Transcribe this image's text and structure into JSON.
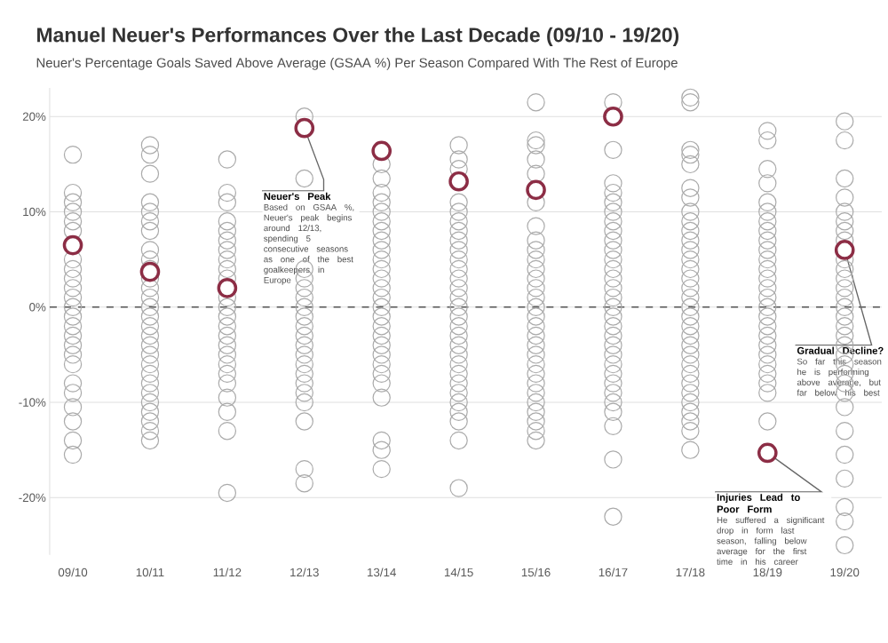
{
  "chart_data": {
    "type": "scatter",
    "title": "Manuel Neuer's Performances Over the Last Decade (09/10 - 19/20)",
    "subtitle": "Neuer's Percentage Goals Saved Above Average (GSAA %) Per Season Compared With The Rest of Europe",
    "categories": [
      "09/10",
      "10/11",
      "11/12",
      "12/13",
      "13/14",
      "14/15",
      "15/16",
      "16/17",
      "17/18",
      "18/19",
      "19/20"
    ],
    "ylim": [
      -26,
      23
    ],
    "yticks": [
      {
        "value": -20,
        "label": "-20%"
      },
      {
        "value": -10,
        "label": "-10%"
      },
      {
        "value": 0,
        "label": "0%"
      },
      {
        "value": 10,
        "label": "10%"
      },
      {
        "value": 20,
        "label": "20%"
      }
    ],
    "grid": "y",
    "marker": "circle",
    "ref_lines": [
      {
        "axis": "y",
        "value": 0,
        "line_style": "dashed",
        "color": "#555555"
      }
    ],
    "series": [
      {
        "color": "#aaaaaa",
        "x": [
          "09/10",
          "09/10",
          "09/10",
          "09/10",
          "09/10",
          "09/10",
          "09/10",
          "09/10",
          "09/10",
          "09/10",
          "09/10",
          "09/10",
          "09/10",
          "09/10",
          "09/10",
          "09/10",
          "09/10",
          "09/10",
          "09/10",
          "09/10",
          "09/10",
          "09/10",
          "09/10",
          "09/10",
          "10/11",
          "10/11",
          "10/11",
          "10/11",
          "10/11",
          "10/11",
          "10/11",
          "10/11",
          "10/11",
          "10/11",
          "10/11",
          "10/11",
          "10/11",
          "10/11",
          "10/11",
          "10/11",
          "10/11",
          "10/11",
          "10/11",
          "10/11",
          "10/11",
          "10/11",
          "10/11",
          "10/11",
          "10/11",
          "10/11",
          "10/11",
          "10/11",
          "11/12",
          "11/12",
          "11/12",
          "11/12",
          "11/12",
          "11/12",
          "11/12",
          "11/12",
          "11/12",
          "11/12",
          "11/12",
          "11/12",
          "11/12",
          "11/12",
          "11/12",
          "11/12",
          "11/12",
          "11/12",
          "11/12",
          "11/12",
          "11/12",
          "11/12",
          "11/12",
          "11/12",
          "12/13",
          "12/13",
          "12/13",
          "12/13",
          "12/13",
          "12/13",
          "12/13",
          "12/13",
          "12/13",
          "12/13",
          "12/13",
          "12/13",
          "12/13",
          "12/13",
          "12/13",
          "12/13",
          "12/13",
          "12/13",
          "12/13",
          "12/13",
          "13/14",
          "13/14",
          "13/14",
          "13/14",
          "13/14",
          "13/14",
          "13/14",
          "13/14",
          "13/14",
          "13/14",
          "13/14",
          "13/14",
          "13/14",
          "13/14",
          "13/14",
          "13/14",
          "13/14",
          "13/14",
          "13/14",
          "13/14",
          "13/14",
          "13/14",
          "13/14",
          "13/14",
          "13/14",
          "13/14",
          "13/14",
          "14/15",
          "14/15",
          "14/15",
          "14/15",
          "14/15",
          "14/15",
          "14/15",
          "14/15",
          "14/15",
          "14/15",
          "14/15",
          "14/15",
          "14/15",
          "14/15",
          "14/15",
          "14/15",
          "14/15",
          "14/15",
          "14/15",
          "14/15",
          "14/15",
          "14/15",
          "14/15",
          "14/15",
          "14/15",
          "14/15",
          "14/15",
          "14/15",
          "14/15",
          "15/16",
          "15/16",
          "15/16",
          "15/16",
          "15/16",
          "15/16",
          "15/16",
          "15/16",
          "15/16",
          "15/16",
          "15/16",
          "15/16",
          "15/16",
          "15/16",
          "15/16",
          "15/16",
          "15/16",
          "15/16",
          "15/16",
          "15/16",
          "15/16",
          "15/16",
          "15/16",
          "15/16",
          "15/16",
          "15/16",
          "15/16",
          "15/16",
          "15/16",
          "16/17",
          "16/17",
          "16/17",
          "16/17",
          "16/17",
          "16/17",
          "16/17",
          "16/17",
          "16/17",
          "16/17",
          "16/17",
          "16/17",
          "16/17",
          "16/17",
          "16/17",
          "16/17",
          "16/17",
          "16/17",
          "16/17",
          "16/17",
          "16/17",
          "16/17",
          "16/17",
          "16/17",
          "16/17",
          "16/17",
          "16/17",
          "16/17",
          "16/17",
          "16/17",
          "17/18",
          "17/18",
          "17/18",
          "17/18",
          "17/18",
          "17/18",
          "17/18",
          "17/18",
          "17/18",
          "17/18",
          "17/18",
          "17/18",
          "17/18",
          "17/18",
          "17/18",
          "17/18",
          "17/18",
          "17/18",
          "17/18",
          "17/18",
          "17/18",
          "17/18",
          "17/18",
          "17/18",
          "17/18",
          "17/18",
          "17/18",
          "17/18",
          "17/18",
          "17/18",
          "17/18",
          "17/18",
          "18/19",
          "18/19",
          "18/19",
          "18/19",
          "18/19",
          "18/19",
          "18/19",
          "18/19",
          "18/19",
          "18/19",
          "18/19",
          "18/19",
          "18/19",
          "18/19",
          "18/19",
          "18/19",
          "18/19",
          "18/19",
          "18/19",
          "18/19",
          "18/19",
          "18/19",
          "18/19",
          "18/19",
          "18/19",
          "18/19",
          "19/20",
          "19/20",
          "19/20",
          "19/20",
          "19/20",
          "19/20",
          "19/20",
          "19/20",
          "19/20",
          "19/20",
          "19/20",
          "19/20",
          "19/20",
          "19/20",
          "19/20",
          "19/20",
          "19/20",
          "19/20",
          "19/20",
          "19/20",
          "19/20",
          "19/20",
          "19/20",
          "19/20",
          "19/20",
          "19/20",
          "19/20",
          "19/20",
          "19/20",
          "19/20"
        ],
        "values": [
          16,
          12,
          11,
          10,
          9,
          8,
          5,
          4,
          3,
          2,
          1,
          0,
          -1,
          -2,
          -3,
          -4,
          -5,
          -6,
          -8,
          -9,
          -10.5,
          -12,
          -14,
          -15.5,
          17,
          16,
          14,
          11,
          10,
          9,
          8,
          6,
          5,
          4,
          3,
          2,
          1,
          0,
          -1,
          -2,
          -3,
          -4,
          -5,
          -6,
          -7,
          -8,
          -9,
          -10,
          -11,
          -12,
          -13,
          -14,
          15.5,
          12,
          11,
          9,
          8,
          7,
          6,
          5,
          4,
          3,
          1,
          0,
          -1,
          -2,
          -3,
          -4,
          -5,
          -6,
          -7,
          -8,
          -9.5,
          -11,
          -13,
          -19.5,
          20,
          13.5,
          4,
          3,
          2,
          1,
          0,
          -1,
          -2,
          -3,
          -4,
          -5,
          -6,
          -7,
          -8,
          -9,
          -10,
          -12,
          -17,
          -18.5,
          15,
          13.5,
          12,
          11,
          10,
          9,
          8,
          7,
          6,
          5,
          4,
          3,
          2,
          1,
          0,
          -1,
          -2,
          -3,
          -4,
          -5,
          -6,
          -7,
          -8,
          -9.5,
          -14,
          -15,
          -17,
          17,
          15.5,
          14.5,
          11,
          10,
          9,
          8,
          7,
          6,
          5,
          4,
          3,
          2,
          1,
          0,
          -1,
          -2,
          -3,
          -4,
          -5,
          -6,
          -7,
          -8,
          -9,
          -10,
          -11,
          -12,
          -14,
          -19,
          21.5,
          17.5,
          17,
          15.5,
          14,
          11,
          8.5,
          7,
          6,
          5,
          4,
          3,
          2,
          1,
          0,
          -1,
          -2,
          -3,
          -4,
          -5,
          -6,
          -7,
          -8,
          -9,
          -10,
          -11,
          -12,
          -13,
          -14,
          21.5,
          16.5,
          13,
          12,
          11,
          10,
          9,
          8,
          7,
          6,
          5,
          4,
          3,
          2,
          1,
          0,
          -1,
          -2,
          -3,
          -4,
          -5,
          -6,
          -7,
          -8,
          -9,
          -10,
          -11,
          -12.5,
          -16,
          -22,
          22,
          21.5,
          16.5,
          16,
          15,
          12.5,
          11.5,
          10,
          9,
          8,
          7,
          6,
          5,
          4,
          3,
          2,
          1,
          0,
          -1,
          -2,
          -3,
          -4,
          -5,
          -6,
          -7,
          -8,
          -9,
          -10,
          -11,
          -12,
          -13,
          -15,
          18.5,
          17.5,
          14.5,
          13,
          11,
          10,
          9,
          8,
          7,
          6,
          5,
          4,
          3,
          2,
          1,
          0,
          -1,
          -2,
          -3,
          -4,
          -5,
          -6,
          -7,
          -8,
          -9,
          -12,
          19.5,
          17.5,
          13.5,
          11.5,
          10,
          9,
          8,
          7,
          5,
          4,
          3,
          2,
          1,
          0,
          -1,
          -2,
          -3,
          -4,
          -5,
          -6,
          -7,
          -8,
          -9,
          -10.5,
          -13,
          -15.5,
          -18,
          -21,
          -22.5,
          -25
        ]
      },
      {
        "color": "#8c2d45",
        "values": [
          6.5,
          3.7,
          2.0,
          18.8,
          16.4,
          13.2,
          12.3,
          20.0,
          null,
          -15.3,
          6.0
        ]
      }
    ],
    "annotations": [
      {
        "text": "Neuer's Peak",
        "x": "12/13",
        "y": 18.8
      },
      "Based on GSAA %, Neuer's peak begins around 12/13, spending 5 consecutive seasons as one of the best goalkeepers in Europe",
      {
        "text": "Gradual Decline?",
        "x": "19/20",
        "y": 6.0
      },
      "So far this season he is performing above average, but far below his best",
      {
        "text": "Injuries Lead to Poor Form",
        "x": "18/19",
        "y": -15.3
      },
      "He suffered a significant drop in form last season, falling below average for the first time in his career"
    ]
  }
}
